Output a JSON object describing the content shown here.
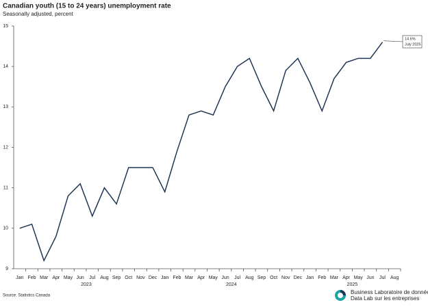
{
  "chart_data": {
    "type": "line",
    "title": "Canadian youth (15 to 24 years) unemployment rate",
    "subtitle": "Seasonally adjusted, percent",
    "categories": [
      "Jan",
      "Feb",
      "Mar",
      "Apr",
      "May",
      "Jun",
      "Jul",
      "Aug",
      "Sep",
      "Oct",
      "Nov",
      "Dec",
      "Jan",
      "Feb",
      "Mar",
      "Apr",
      "May",
      "Jun",
      "Jul",
      "Aug",
      "Sep",
      "Oct",
      "Nov",
      "Dec",
      "Jan",
      "Feb",
      "Mar",
      "Apr",
      "May",
      "Jun",
      "Jul",
      "Aug"
    ],
    "year_groups": [
      {
        "label": "2023",
        "months": 12
      },
      {
        "label": "2024",
        "months": 12
      },
      {
        "label": "2025",
        "months": 8
      }
    ],
    "series": [
      {
        "name": "Youth unemployment rate",
        "color": "#1f3556",
        "values": [
          10.0,
          10.1,
          9.2,
          9.8,
          10.8,
          11.1,
          10.3,
          11.0,
          10.6,
          11.5,
          11.5,
          11.5,
          10.9,
          11.9,
          12.8,
          12.9,
          12.8,
          13.5,
          14.0,
          14.2,
          13.5,
          12.9,
          13.9,
          14.2,
          13.6,
          12.9,
          13.7,
          14.1,
          14.2,
          14.2,
          14.6,
          null
        ]
      }
    ],
    "ylim": [
      9,
      15
    ],
    "yticks": [
      9,
      10,
      11,
      12,
      13,
      14,
      15
    ],
    "grid": false,
    "annotation": {
      "lines": [
        "14.6%",
        "July 2025"
      ],
      "index": 30
    },
    "source": "Source: Statistics Canada"
  },
  "logo": {
    "en": [
      "Business",
      "Data Lab"
    ],
    "fr": [
      "Laboratoire de données",
      "sur les entreprises"
    ]
  }
}
